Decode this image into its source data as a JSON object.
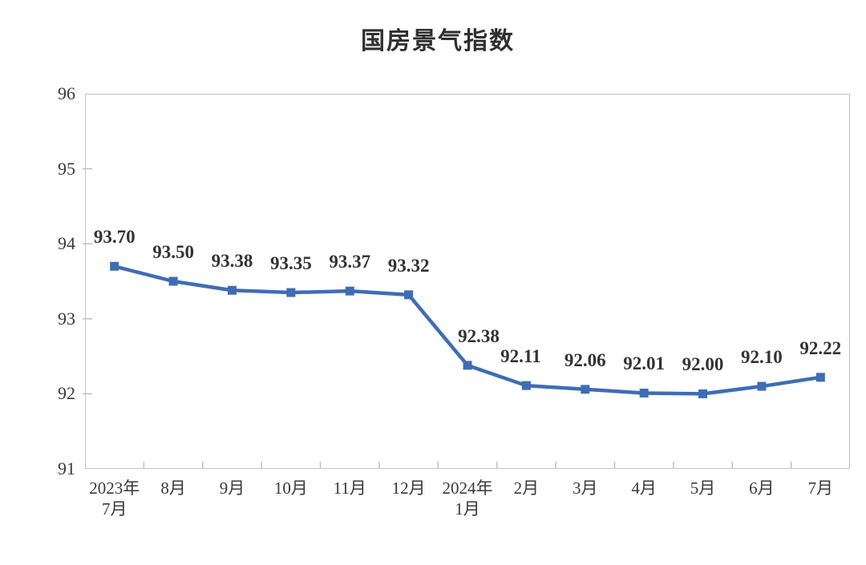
{
  "page": {
    "title": "国房景气指数"
  },
  "chart_data": {
    "type": "line",
    "title": "国房景气指数",
    "categories": [
      "2023年\n7月",
      "8月",
      "9月",
      "10月",
      "11月",
      "12月",
      "2024年\n1月",
      "2月",
      "3月",
      "4月",
      "5月",
      "6月",
      "7月"
    ],
    "values": [
      93.7,
      93.5,
      93.38,
      93.35,
      93.37,
      93.32,
      92.38,
      92.11,
      92.06,
      92.01,
      92.0,
      92.1,
      92.22
    ],
    "point_labels": [
      "93.70",
      "93.50",
      "93.38",
      "93.35",
      "93.37",
      "93.32",
      "92.38",
      "92.11",
      "92.06",
      "92.01",
      "92.00",
      "92.10",
      "92.22"
    ],
    "xlabel": "",
    "ylabel": "",
    "y_ticks": [
      91,
      92,
      93,
      94,
      95,
      96
    ],
    "ylim": [
      91,
      96
    ],
    "grid": false,
    "legend_position": "none",
    "series_name": "国房景气指数",
    "colors": {
      "line": "#3e6db5",
      "marker": "#3e6db5",
      "axis": "#c1c1c1",
      "tick_text": "#3a3a3a",
      "data_label_text": "#333333",
      "title_text": "#2f2f2f",
      "background": "#ffffff"
    }
  }
}
